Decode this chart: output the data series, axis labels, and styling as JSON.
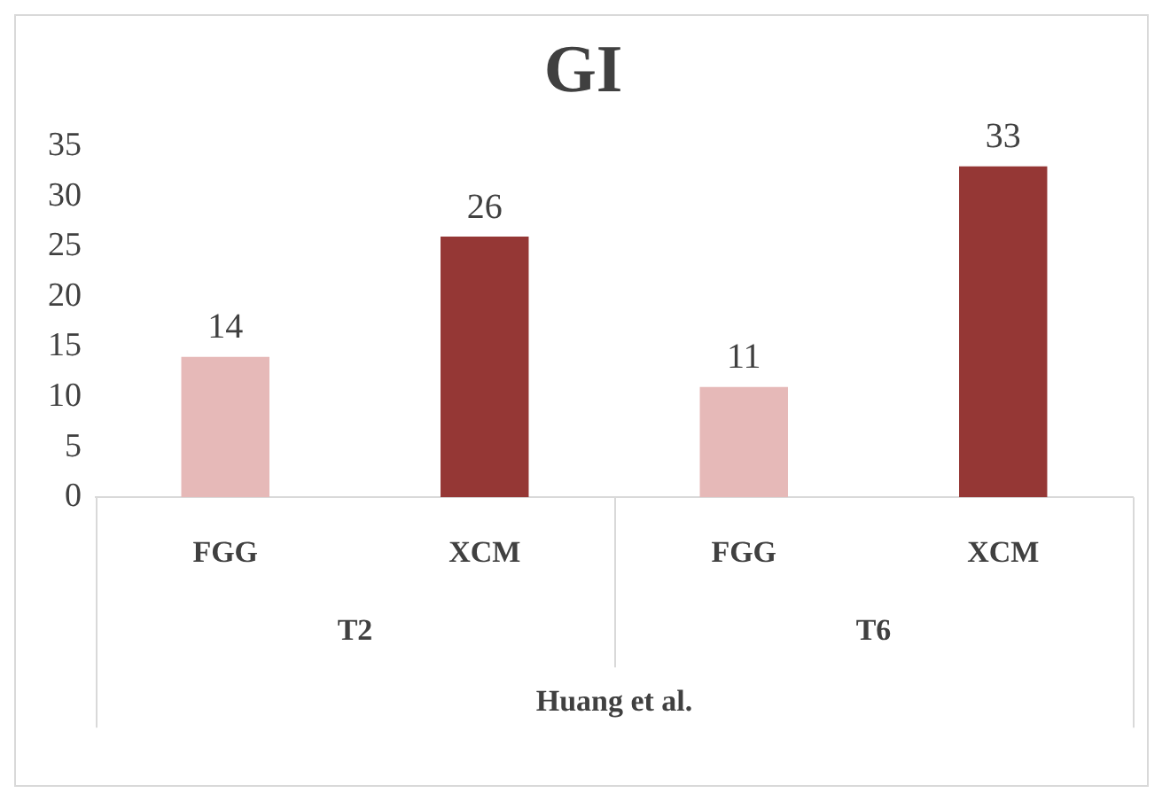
{
  "chart_data": {
    "type": "bar",
    "title": "GI",
    "categories": [
      "FGG",
      "XCM",
      "FGG",
      "XCM"
    ],
    "values": [
      14,
      26,
      11,
      33
    ],
    "colors": [
      "#e6b9b8",
      "#953735",
      "#e6b9b8",
      "#953735"
    ],
    "ylim": [
      0,
      35
    ],
    "yticks": [
      0,
      5,
      10,
      15,
      20,
      25,
      30,
      35
    ],
    "grid": false,
    "legend": false,
    "data_labels": true,
    "annotations": [
      "T2",
      "T6",
      "Huang et al."
    ]
  }
}
